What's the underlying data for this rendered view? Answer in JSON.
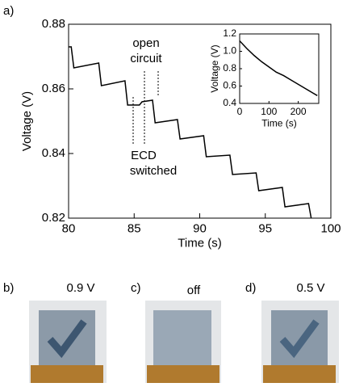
{
  "chart_data": [
    {
      "type": "line",
      "panel_label": "a)",
      "xlabel": "Time (s)",
      "ylabel": "Voltage (V)",
      "x": [
        80,
        80.2,
        80.4,
        82.3,
        82.5,
        84.3,
        84.5,
        85.4,
        85.6,
        86.4,
        86.6,
        88.3,
        88.5,
        90.3,
        90.5,
        92.3,
        92.5,
        94.3,
        94.5,
        96.3,
        96.5,
        98.3,
        98.5
      ],
      "values": [
        0.873,
        0.873,
        0.8665,
        0.868,
        0.861,
        0.8625,
        0.855,
        0.855,
        0.856,
        0.8565,
        0.8495,
        0.8505,
        0.8445,
        0.8455,
        0.839,
        0.8395,
        0.8335,
        0.834,
        0.8285,
        0.8295,
        0.8235,
        0.8245,
        0.82
      ],
      "color": "#000000",
      "xlim": [
        80,
        100
      ],
      "xticks": [
        80,
        85,
        90,
        95,
        100
      ],
      "ylim": [
        0.82,
        0.88
      ],
      "yticks": [
        0.82,
        0.84,
        0.86,
        0.88
      ],
      "annotations": [
        {
          "lines": [
            "open",
            "circuit"
          ]
        },
        {
          "lines": [
            "ECD",
            "switched"
          ]
        }
      ]
    },
    {
      "type": "line",
      "xlabel": "Time (s)",
      "ylabel": "Voltage (V)",
      "x": [
        0,
        25,
        50,
        75,
        100,
        125,
        150,
        175,
        200,
        225,
        250,
        265
      ],
      "values": [
        1.12,
        1.03,
        0.95,
        0.88,
        0.82,
        0.76,
        0.72,
        0.67,
        0.62,
        0.57,
        0.52,
        0.49
      ],
      "color": "#000000",
      "xlim": [
        0,
        270
      ],
      "xticks": [
        0,
        100,
        200
      ],
      "ylim": [
        0.4,
        1.2
      ],
      "yticks": [
        0.4,
        0.6,
        0.8,
        {
          "value": 1,
          "label": "1.0"
        },
        1.2
      ]
    }
  ],
  "photos": [
    {
      "label": "b)",
      "caption": "0.9 V"
    },
    {
      "label": "c)",
      "caption": "off"
    },
    {
      "label": "d)",
      "caption": "0.5 V"
    }
  ]
}
